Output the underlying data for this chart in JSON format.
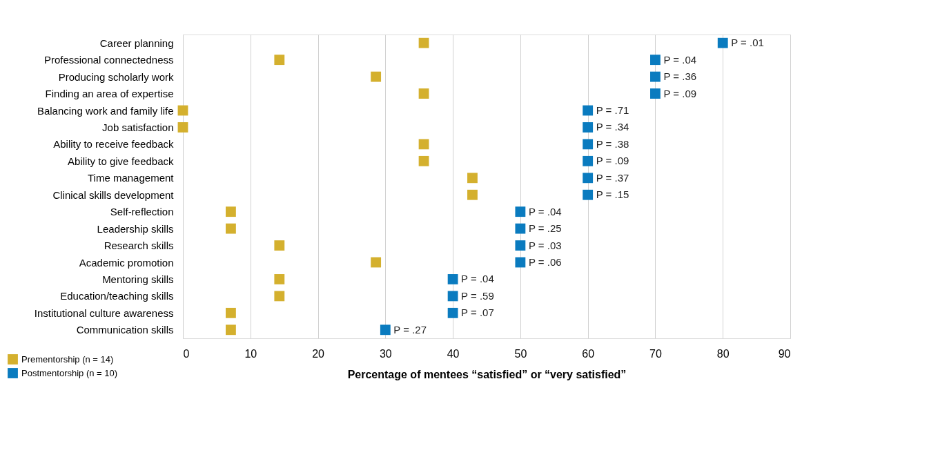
{
  "chart_data": {
    "type": "scatter",
    "xlabel": "Percentage of mentees “satisfied” or “very satisfied”",
    "categories": [
      "Career planning",
      "Professional connectedness",
      "Producing scholarly work",
      "Finding an area of expertise",
      "Balancing work and family life",
      "Job satisfaction",
      "Ability to receive feedback ",
      "Ability to give feedback",
      "Time management",
      "Clinical skills development ",
      "Self-reflection",
      "Leadership skills",
      "Research skills",
      "Academic promotion",
      "Mentoring skills",
      "Education/teaching skills",
      "Institutional culture awareness",
      "Communication skills"
    ],
    "series": [
      {
        "name": "Prementorship (n = 14)",
        "color": "#d4b02e",
        "values": [
          35.7,
          14.3,
          28.6,
          35.7,
          0,
          0,
          35.7,
          35.7,
          42.9,
          42.9,
          7.1,
          7.1,
          14.3,
          28.6,
          14.3,
          14.3,
          7.1,
          7.1
        ]
      },
      {
        "name": "Postmentorship (n = 10)",
        "color": "#0a7bbf",
        "values": [
          80,
          70,
          70,
          70,
          60,
          60,
          60,
          60,
          60,
          60,
          50,
          50,
          50,
          50,
          40,
          40,
          40,
          30
        ]
      }
    ],
    "orientation": "horizontal",
    "xlim": [
      0,
      90
    ],
    "xticks": [
      0,
      10,
      20,
      30,
      40,
      50,
      60,
      70,
      80,
      90
    ],
    "grid": "x",
    "legend": "bottom left",
    "marker": "square",
    "annotations": [
      {
        "text": "P = .01",
        "x": 80,
        "y": "Career planning"
      },
      {
        "text": "P = .04",
        "x": 70,
        "y": "Professional connectedness"
      },
      {
        "text": "P = .36",
        "x": 70,
        "y": "Producing scholarly work"
      },
      {
        "text": "P = .09",
        "x": 70,
        "y": "Finding an area of expertise"
      },
      {
        "text": "P = .71",
        "x": 60,
        "y": "Balancing work and family life"
      },
      {
        "text": "P = .34",
        "x": 60,
        "y": "Job satisfaction"
      },
      {
        "text": "P = .38",
        "x": 60,
        "y": "Ability to receive feedback "
      },
      {
        "text": "P = .09",
        "x": 60,
        "y": "Ability to give feedback"
      },
      {
        "text": "P = .37",
        "x": 60,
        "y": "Time management"
      },
      {
        "text": "P = .15",
        "x": 60,
        "y": "Clinical skills development "
      },
      {
        "text": "P = .04",
        "x": 50,
        "y": "Self-reflection"
      },
      {
        "text": "P = .25",
        "x": 50,
        "y": "Leadership skills"
      },
      {
        "text": "P = .03",
        "x": 50,
        "y": "Research skills"
      },
      {
        "text": "P = .06",
        "x": 50,
        "y": "Academic promotion"
      },
      {
        "text": "P = .04",
        "x": 40,
        "y": "Mentoring skills"
      },
      {
        "text": "P = .59",
        "x": 40,
        "y": "Education/teaching skills"
      },
      {
        "text": "P = .07",
        "x": 40,
        "y": "Institutional culture awareness"
      },
      {
        "text": "P = .27",
        "x": 30,
        "y": "Communication skills"
      }
    ]
  }
}
